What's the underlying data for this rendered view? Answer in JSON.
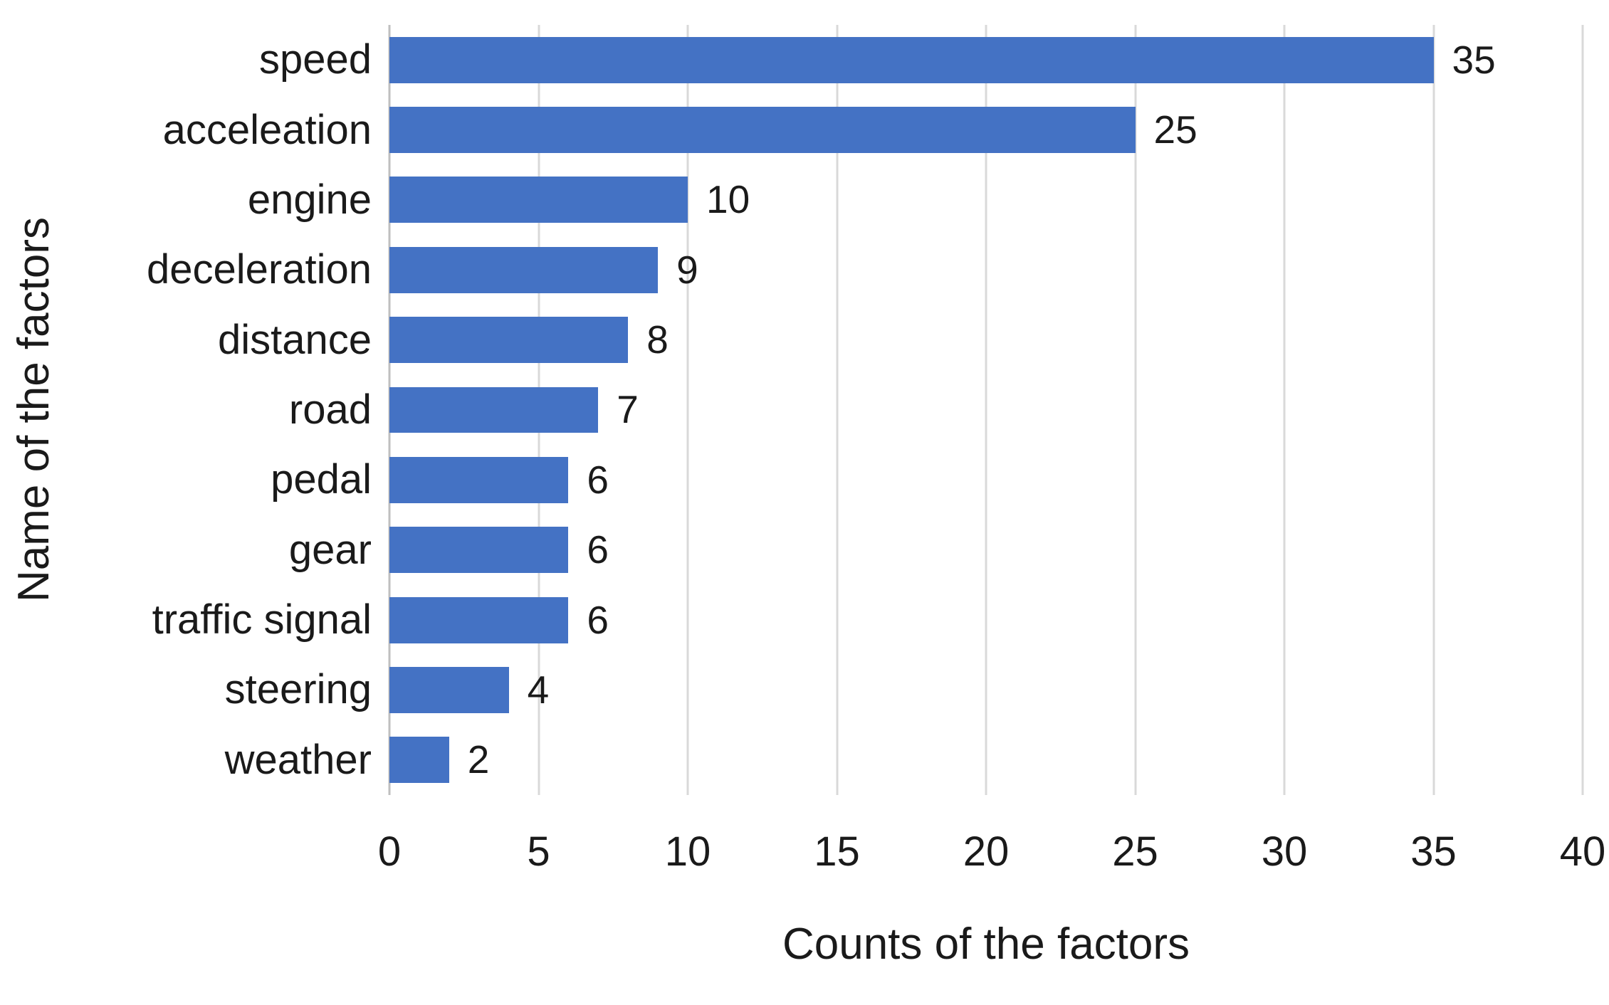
{
  "chart_data": {
    "type": "bar",
    "orientation": "horizontal",
    "categories": [
      "speed",
      "acceleation",
      "engine",
      "deceleration",
      "distance",
      "road",
      "pedal",
      "gear",
      "traffic signal",
      "steering",
      "weather"
    ],
    "values": [
      35,
      25,
      10,
      9,
      8,
      7,
      6,
      6,
      6,
      4,
      2
    ],
    "data_labels": [
      "35",
      "25",
      "10",
      "9",
      "8",
      "7",
      "6",
      "6",
      "6",
      "4",
      "2"
    ],
    "title": "",
    "xlabel": "Counts of the factors",
    "ylabel": "Name of the factors",
    "xlim": [
      0,
      40
    ],
    "xticks": [
      0,
      5,
      10,
      15,
      20,
      25,
      30,
      35,
      40
    ],
    "grid": "vertical-gridlines-on",
    "legend": "none",
    "bar_color": "#4472c4",
    "gridline_color": "#d9d9d9",
    "axis_line_color": "#bfbfbf",
    "text_color": "#1a1a1a",
    "background_color": "#ffffff"
  }
}
